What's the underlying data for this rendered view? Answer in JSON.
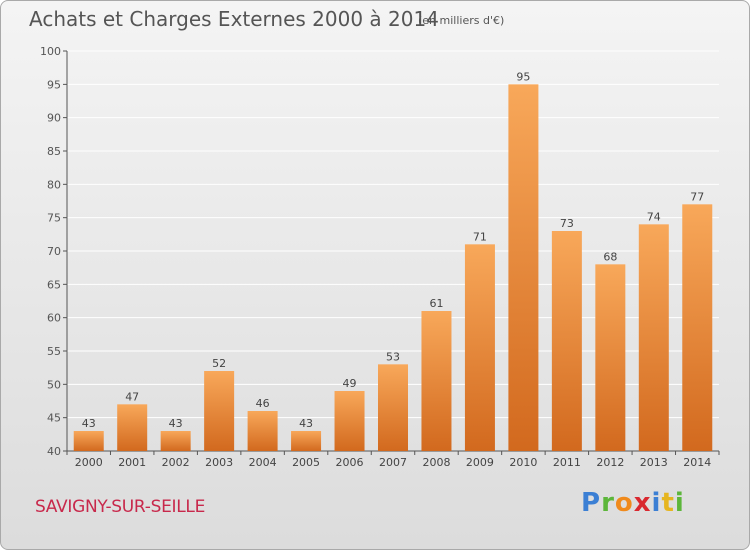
{
  "header": {
    "title": "Achats et Charges Externes 2000 à 2014",
    "subtitle": "(en milliers d'€)"
  },
  "footer": {
    "commune": "SAVIGNY-SUR-SEILLE",
    "logo": "Proxiti"
  },
  "colors": {
    "bar_light": "#f8a85a",
    "bar_dark": "#d2691e",
    "commune_text": "#c8284b",
    "grid": "#ffffff"
  },
  "chart_data": {
    "type": "bar",
    "categories": [
      "2000",
      "2001",
      "2002",
      "2003",
      "2004",
      "2005",
      "2006",
      "2007",
      "2008",
      "2009",
      "2010",
      "2011",
      "2012",
      "2013",
      "2014"
    ],
    "values": [
      43,
      47,
      43,
      52,
      46,
      43,
      49,
      53,
      61,
      71,
      95,
      73,
      68,
      74,
      77
    ],
    "ylim": [
      40,
      100
    ],
    "yticks": [
      40,
      45,
      50,
      55,
      60,
      65,
      70,
      75,
      80,
      85,
      90,
      95,
      100
    ],
    "grid": true,
    "data_labels": true
  }
}
